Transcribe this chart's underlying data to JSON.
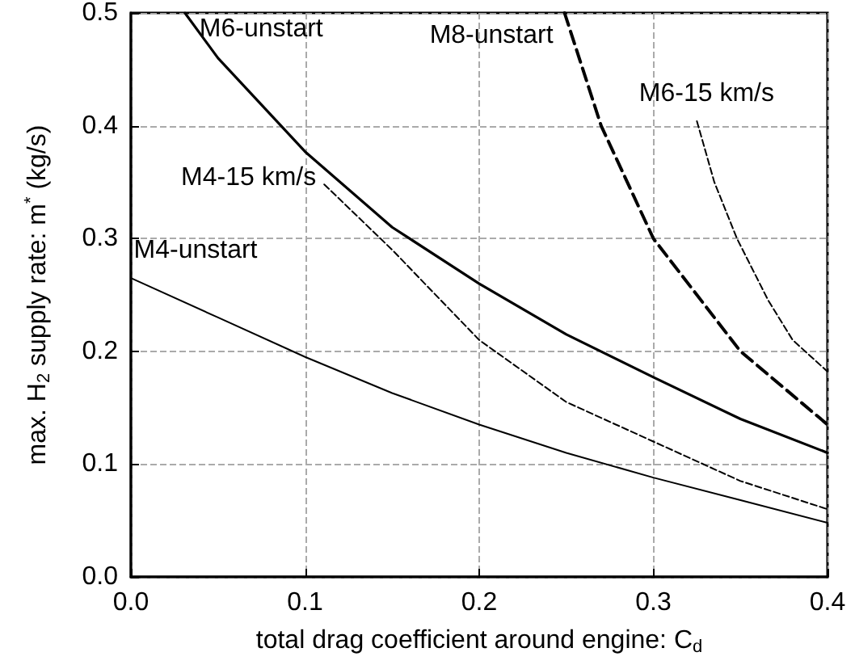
{
  "chart_data": {
    "type": "line",
    "xlabel": "total drag coefficient around engine: C$_{d}$",
    "ylabel": "max. H$_{2}$ supply rate: m$^{*}$ (kg/s)",
    "xlim": [
      0,
      0.4
    ],
    "ylim": [
      0,
      0.5
    ],
    "xticks": [
      {
        "value": 0,
        "label": "0.0"
      },
      {
        "value": 0.1,
        "label": "0.1"
      },
      {
        "value": 0.2,
        "label": "0.2"
      },
      {
        "value": 0.3,
        "label": "0.3"
      },
      {
        "value": 0.4,
        "label": "0.4"
      }
    ],
    "yticks": [
      {
        "value": 0,
        "label": "0.0"
      },
      {
        "value": 0.1,
        "label": "0.1"
      },
      {
        "value": 0.2,
        "label": "0.2"
      },
      {
        "value": 0.3,
        "label": "0.3"
      },
      {
        "value": 0.4,
        "label": "0.4"
      },
      {
        "value": 0.5,
        "label": "0.5"
      }
    ],
    "grid": true,
    "legend": false,
    "marker": "none",
    "series": [
      {
        "name": "M6-unstart",
        "color": "#000000",
        "line_style": "solid",
        "x": [
          0.031,
          0.05,
          0.1,
          0.15,
          0.2,
          0.25,
          0.3,
          0.35,
          0.4
        ],
        "values": [
          0.5,
          0.46,
          0.377,
          0.31,
          0.26,
          0.215,
          0.177,
          0.14,
          0.11
        ]
      },
      {
        "name": "M8-unstart",
        "color": "#000000",
        "line_style": "dashed",
        "x": [
          0.249,
          0.27,
          0.3,
          0.35,
          0.4
        ],
        "values": [
          0.5,
          0.4,
          0.3,
          0.2,
          0.135
        ]
      },
      {
        "name": "M6-15 km/s",
        "color": "#000000",
        "line_style": "dashed",
        "x": [
          0.325,
          0.335,
          0.348,
          0.366,
          0.38,
          0.4
        ],
        "values": [
          0.404,
          0.35,
          0.3,
          0.245,
          0.21,
          0.182
        ]
      },
      {
        "name": "M4-15 km/s",
        "color": "#000000",
        "line_style": "dashed",
        "x": [
          0.111,
          0.15,
          0.2,
          0.25,
          0.3,
          0.35,
          0.4
        ],
        "values": [
          0.348,
          0.29,
          0.21,
          0.155,
          0.12,
          0.085,
          0.06
        ]
      },
      {
        "name": "M4-unstart",
        "color": "#000000",
        "line_style": "solid",
        "x": [
          0,
          0.05,
          0.1,
          0.15,
          0.2,
          0.25,
          0.3,
          0.35,
          0.4
        ],
        "values": [
          0.265,
          0.23,
          0.195,
          0.163,
          0.135,
          0.11,
          0.088,
          0.068,
          0.048
        ]
      }
    ]
  }
}
